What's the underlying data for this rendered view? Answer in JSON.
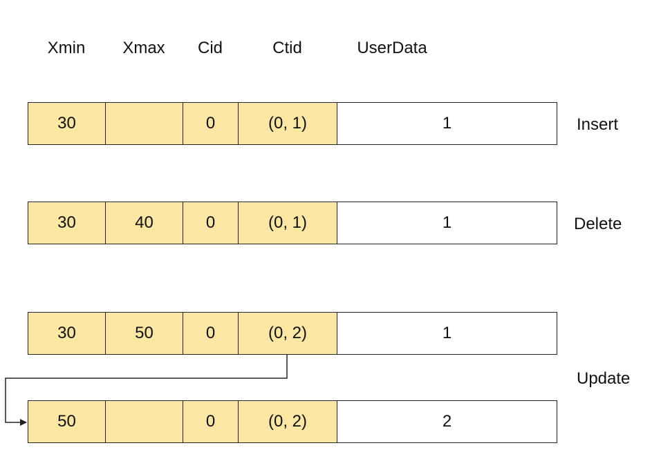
{
  "headers": {
    "xmin": "Xmin",
    "xmax": "Xmax",
    "cid": "Cid",
    "ctid": "Ctid",
    "userdata": "UserData"
  },
  "rows": [
    {
      "xmin": "30",
      "xmax": "",
      "cid": "0",
      "ctid": "(0, 1)",
      "userdata": "1"
    },
    {
      "xmin": "30",
      "xmax": "40",
      "cid": "0",
      "ctid": "(0, 1)",
      "userdata": "1"
    },
    {
      "xmin": "30",
      "xmax": "50",
      "cid": "0",
      "ctid": "(0, 2)",
      "userdata": "1"
    },
    {
      "xmin": "50",
      "xmax": "",
      "cid": "0",
      "ctid": "(0, 2)",
      "userdata": "2"
    }
  ],
  "operations": {
    "insert": "Insert",
    "delete": "Delete",
    "update": "Update"
  },
  "colors": {
    "header_fill": "#fbe7a3",
    "border": "#222222"
  }
}
